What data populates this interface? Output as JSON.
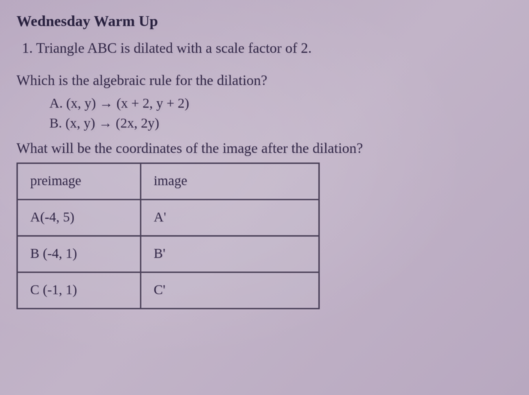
{
  "title": "Wednesday Warm Up",
  "problem": {
    "number": "1.",
    "statement": "Triangle ABC is dilated with a scale factor of 2."
  },
  "question1": {
    "text": "Which is the algebraic rule for the dilation?",
    "choices": {
      "a": "A.   (x, y) → (x + 2, y + 2)",
      "b": "B.   (x, y) → (2x, 2y)"
    }
  },
  "question2": "What will be the coordinates of the image after the dilation?",
  "table": {
    "headers": {
      "preimage": "preimage",
      "image": "image"
    },
    "rows": [
      {
        "preimage": "A(-4, 5)",
        "image": "A'"
      },
      {
        "preimage": "B (-4, 1)",
        "image": "B'"
      },
      {
        "preimage": "C (-1, 1)",
        "image": "C'"
      }
    ],
    "border_color": "#4a4058",
    "cell_padding": "14px 18px",
    "col1_width": 180,
    "col2_width": 260
  },
  "colors": {
    "background_start": "#b8a8c0",
    "background_end": "#c2b4c8",
    "text": "#332848",
    "title_text": "#2a2240"
  },
  "typography": {
    "font_family": "Georgia, Times New Roman, serif",
    "title_fontsize": 22,
    "body_fontsize": 21,
    "choice_fontsize": 20,
    "table_fontsize": 20
  }
}
